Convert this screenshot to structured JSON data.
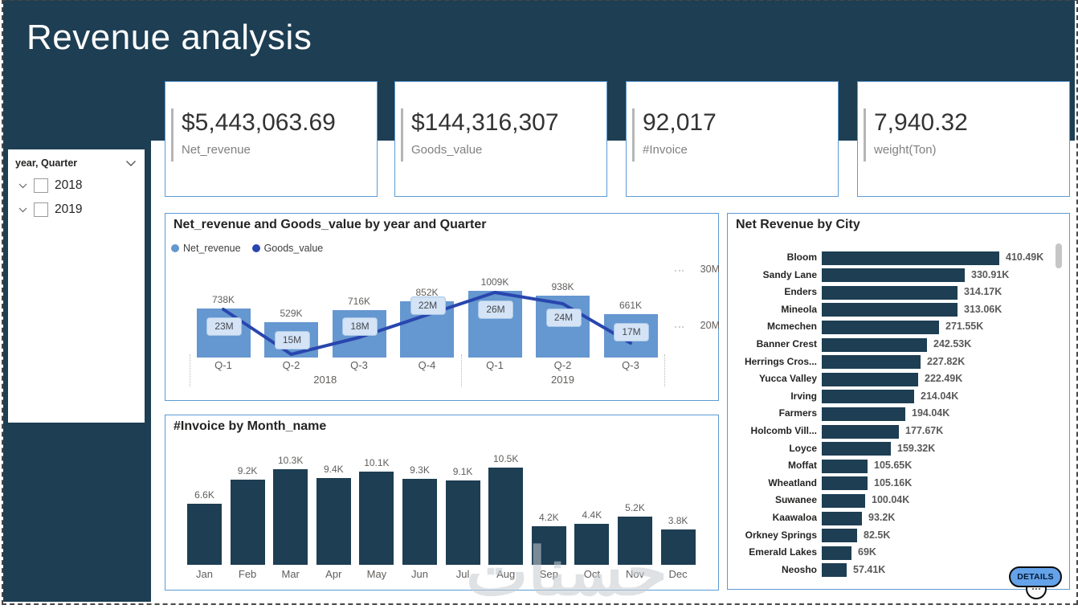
{
  "page": {
    "title": "Revenue analysis",
    "watermark": "حسنات"
  },
  "colors": {
    "dark_teal": "#1d3e53",
    "bar_blue": "#6597d0",
    "line_blue": "#2946ae",
    "panel_border": "#5b9bd5",
    "pill_bg": "#d4e3f5",
    "details_blue": "#64a3ea"
  },
  "slicer": {
    "header": "year, Quarter",
    "items": [
      {
        "label": "2018",
        "checked": false
      },
      {
        "label": "2019",
        "checked": false
      }
    ]
  },
  "cards": [
    {
      "value": "$5,443,063.69",
      "label": "Net_revenue"
    },
    {
      "value": "$144,316,307",
      "label": "Goods_value"
    },
    {
      "value": "92,017",
      "label": "#Invoice"
    },
    {
      "value": "7,940.32",
      "label": "weight(Ton)"
    }
  ],
  "details_button": {
    "label": "DETAILS"
  },
  "chart_data": [
    {
      "type": "combo-bar-line",
      "title": "Net_revenue and Goods_value by year and Quarter",
      "categories": [
        "Q-1",
        "Q-2",
        "Q-3",
        "Q-4",
        "Q-1",
        "Q-2",
        "Q-3"
      ],
      "year_groups": [
        {
          "label": "2018",
          "span": 4
        },
        {
          "label": "2019",
          "span": 3
        }
      ],
      "legend_position": "top-left",
      "series": [
        {
          "name": "Net_revenue",
          "type": "bar",
          "axis": "left",
          "unit": "K",
          "values": [
            738,
            529,
            716,
            852,
            1009,
            938,
            661
          ],
          "labels": [
            "738K",
            "529K",
            "716K",
            "852K",
            "1009K",
            "938K",
            "661K"
          ]
        },
        {
          "name": "Goods_value",
          "type": "line",
          "axis": "right",
          "unit": "M",
          "values": [
            23,
            15,
            18,
            22,
            26,
            24,
            17
          ],
          "labels": [
            "23M",
            "15M",
            "18M",
            "22M",
            "26M",
            "24M",
            "17M"
          ]
        }
      ],
      "secondary_axis_ticks": [
        {
          "label": "30M",
          "value": 30
        },
        {
          "label": "20M",
          "value": 20
        }
      ]
    },
    {
      "type": "bar",
      "title": "#Invoice by Month_name",
      "categories": [
        "Jan",
        "Feb",
        "Mar",
        "Apr",
        "May",
        "Jun",
        "Jul",
        "Aug",
        "Sep",
        "Oct",
        "Nov",
        "Dec"
      ],
      "unit": "K",
      "values": [
        6.6,
        9.2,
        10.3,
        9.4,
        10.1,
        9.3,
        9.1,
        10.5,
        4.2,
        4.4,
        5.2,
        3.8
      ],
      "labels": [
        "6.6K",
        "9.2K",
        "10.3K",
        "9.4K",
        "10.1K",
        "9.3K",
        "9.1K",
        "10.5K",
        "4.2K",
        "4.4K",
        "5.2K",
        "3.8K"
      ]
    },
    {
      "type": "horizontal-bar",
      "title": "Net Revenue by City",
      "unit": "K",
      "categories": [
        "Bloom",
        "Sandy Lane",
        "Enders",
        "Mineola",
        "Mcmechen",
        "Banner Crest",
        "Herrings Cros...",
        "Yucca Valley",
        "Irving",
        "Farmers",
        "Holcomb Vill...",
        "Loyce",
        "Moffat",
        "Wheatland",
        "Suwanee",
        "Kaawaloa",
        "Orkney Springs",
        "Emerald Lakes",
        "Neosho"
      ],
      "values": [
        410.49,
        330.91,
        314.17,
        313.06,
        271.55,
        242.53,
        227.82,
        222.49,
        214.04,
        194.04,
        177.67,
        159.32,
        105.65,
        105.16,
        100.04,
        93.2,
        82.5,
        69,
        57.41
      ],
      "labels": [
        "410.49K",
        "330.91K",
        "314.17K",
        "313.06K",
        "271.55K",
        "242.53K",
        "227.82K",
        "222.49K",
        "214.04K",
        "194.04K",
        "177.67K",
        "159.32K",
        "105.65K",
        "105.16K",
        "100.04K",
        "93.2K",
        "82.5K",
        "69K",
        "57.41K"
      ]
    }
  ]
}
